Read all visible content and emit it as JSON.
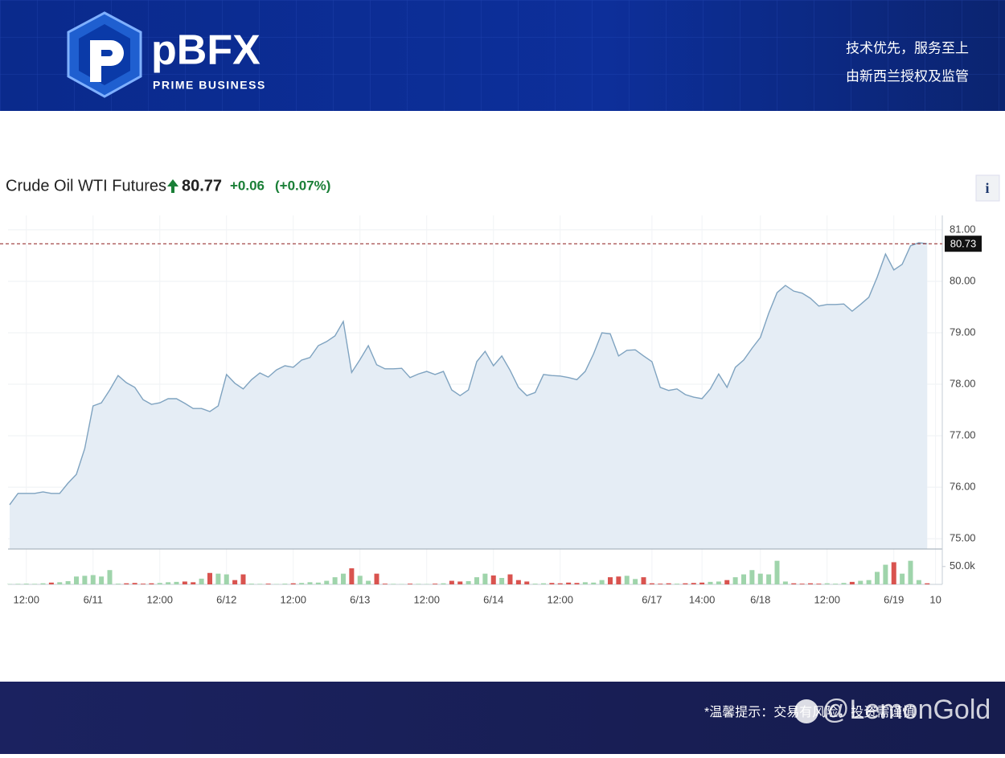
{
  "header": {
    "brand": "pBFX",
    "brand_sub": "PRIME BUSINESS",
    "slogan_1": "技术优先，服务至上",
    "slogan_2": "由新西兰授权及监管"
  },
  "footer": {
    "notice": "*温馨提示：交易有风险，投资需谨慎",
    "watermark": "@LemonGold"
  },
  "info_button": "i",
  "chart_data": {
    "type": "area",
    "title": "Crude Oil WTI Futures",
    "price": "80.77",
    "change": "+0.06",
    "change_pct": "(+0.07%)",
    "last_price": 80.73,
    "grid": true,
    "categories": [
      null,
      null,
      "12:00",
      null,
      null,
      null,
      null,
      null,
      null,
      null,
      "6/11",
      null,
      null,
      null,
      null,
      null,
      null,
      null,
      "12:00",
      null,
      null,
      null,
      null,
      null,
      null,
      null,
      "6/12",
      null,
      null,
      null,
      null,
      null,
      null,
      null,
      "12:00",
      null,
      null,
      null,
      null,
      null,
      null,
      null,
      "6/13",
      null,
      null,
      null,
      null,
      null,
      null,
      null,
      "12:00",
      null,
      null,
      null,
      null,
      null,
      null,
      null,
      "6/14",
      null,
      null,
      null,
      null,
      null,
      null,
      null,
      "12:00",
      null,
      null,
      null,
      null,
      null,
      null,
      null,
      null,
      null,
      null,
      "6/17",
      null,
      null,
      null,
      null,
      null,
      "14:00",
      null,
      null,
      null,
      null,
      null,
      null,
      "6/18",
      null,
      null,
      null,
      null,
      null,
      null,
      null,
      "12:00",
      null,
      null,
      null,
      null,
      null,
      null,
      null,
      "6/19",
      null,
      null,
      null,
      null,
      "10"
    ],
    "series": [
      {
        "name": "Crude Oil WTI Futures",
        "color": "#7fa3c0",
        "fill": "#e5edf5",
        "values": [
          75.66,
          75.88,
          75.88,
          75.88,
          75.91,
          75.88,
          75.88,
          76.08,
          76.25,
          76.75,
          77.58,
          77.64,
          77.89,
          78.17,
          78.03,
          77.94,
          77.7,
          77.61,
          77.64,
          77.72,
          77.72,
          77.63,
          77.53,
          77.53,
          77.47,
          77.58,
          78.19,
          78.02,
          77.91,
          78.09,
          78.22,
          78.14,
          78.28,
          78.36,
          78.33,
          78.47,
          78.52,
          78.75,
          78.83,
          78.94,
          79.22,
          78.23,
          78.48,
          78.75,
          78.38,
          78.3,
          78.3,
          78.31,
          78.13,
          78.2,
          78.25,
          78.19,
          78.25,
          77.89,
          77.78,
          77.89,
          78.44,
          78.64,
          78.36,
          78.55,
          78.27,
          77.94,
          77.78,
          77.84,
          78.19,
          78.17,
          78.16,
          78.13,
          78.09,
          78.25,
          78.59,
          79.0,
          78.98,
          78.55,
          78.66,
          78.67,
          78.55,
          78.44,
          77.94,
          77.88,
          77.91,
          77.8,
          77.75,
          77.72,
          77.91,
          78.2,
          77.94,
          78.33,
          78.47,
          78.7,
          78.91,
          79.38,
          79.78,
          79.92,
          79.81,
          79.77,
          79.67,
          79.52,
          79.55,
          79.55,
          79.56,
          79.42,
          79.55,
          79.69,
          80.08,
          80.53,
          80.22,
          80.33,
          80.69,
          80.75,
          80.73,
          null
        ]
      }
    ],
    "ylim": [
      74.8,
      81.28
    ],
    "yticks": [
      {
        "value": 75,
        "label": "75.00"
      },
      {
        "value": 76,
        "label": "76.00"
      },
      {
        "value": 77,
        "label": "77.00"
      },
      {
        "value": 78,
        "label": "78.00"
      },
      {
        "value": 79,
        "label": "79.00"
      },
      {
        "value": 80,
        "label": "80.00"
      },
      {
        "value": 81,
        "label": "81.00"
      }
    ],
    "volume": {
      "up_color": "#9fd4ab",
      "down_color": "#d9534f",
      "values": [
        1000,
        1500,
        2000,
        1500,
        3000,
        5000,
        6000,
        9000,
        22000,
        24000,
        26000,
        22000,
        40000,
        2000,
        3000,
        4000,
        2000,
        3000,
        4000,
        6000,
        7000,
        8000,
        6000,
        16000,
        32000,
        30000,
        28000,
        12000,
        28000,
        2000,
        1500,
        2000,
        1000,
        2000,
        3000,
        4000,
        6000,
        5000,
        10000,
        20000,
        30000,
        45000,
        24000,
        10000,
        30000,
        2000,
        1500,
        1000,
        2000,
        1500,
        1000,
        2000,
        3000,
        10000,
        8000,
        9000,
        20000,
        30000,
        25000,
        18000,
        28000,
        12000,
        8000,
        2000,
        3000,
        4000,
        3000,
        5000,
        4000,
        6000,
        5000,
        12000,
        20000,
        22000,
        24000,
        15000,
        20000,
        3000,
        2000,
        3000,
        2000,
        3000,
        4000,
        5000,
        7000,
        8000,
        12000,
        20000,
        28000,
        40000,
        30000,
        28000,
        66000,
        8000,
        3000,
        2000,
        3000,
        2000,
        3000,
        2000,
        4000,
        7000,
        10000,
        12000,
        35000,
        55000,
        62000,
        30000,
        66000,
        12000,
        3000,
        null
      ],
      "ylim": [
        0,
        90000
      ],
      "yticks": [
        {
          "value": 50000,
          "label": "50.0k"
        }
      ]
    }
  }
}
